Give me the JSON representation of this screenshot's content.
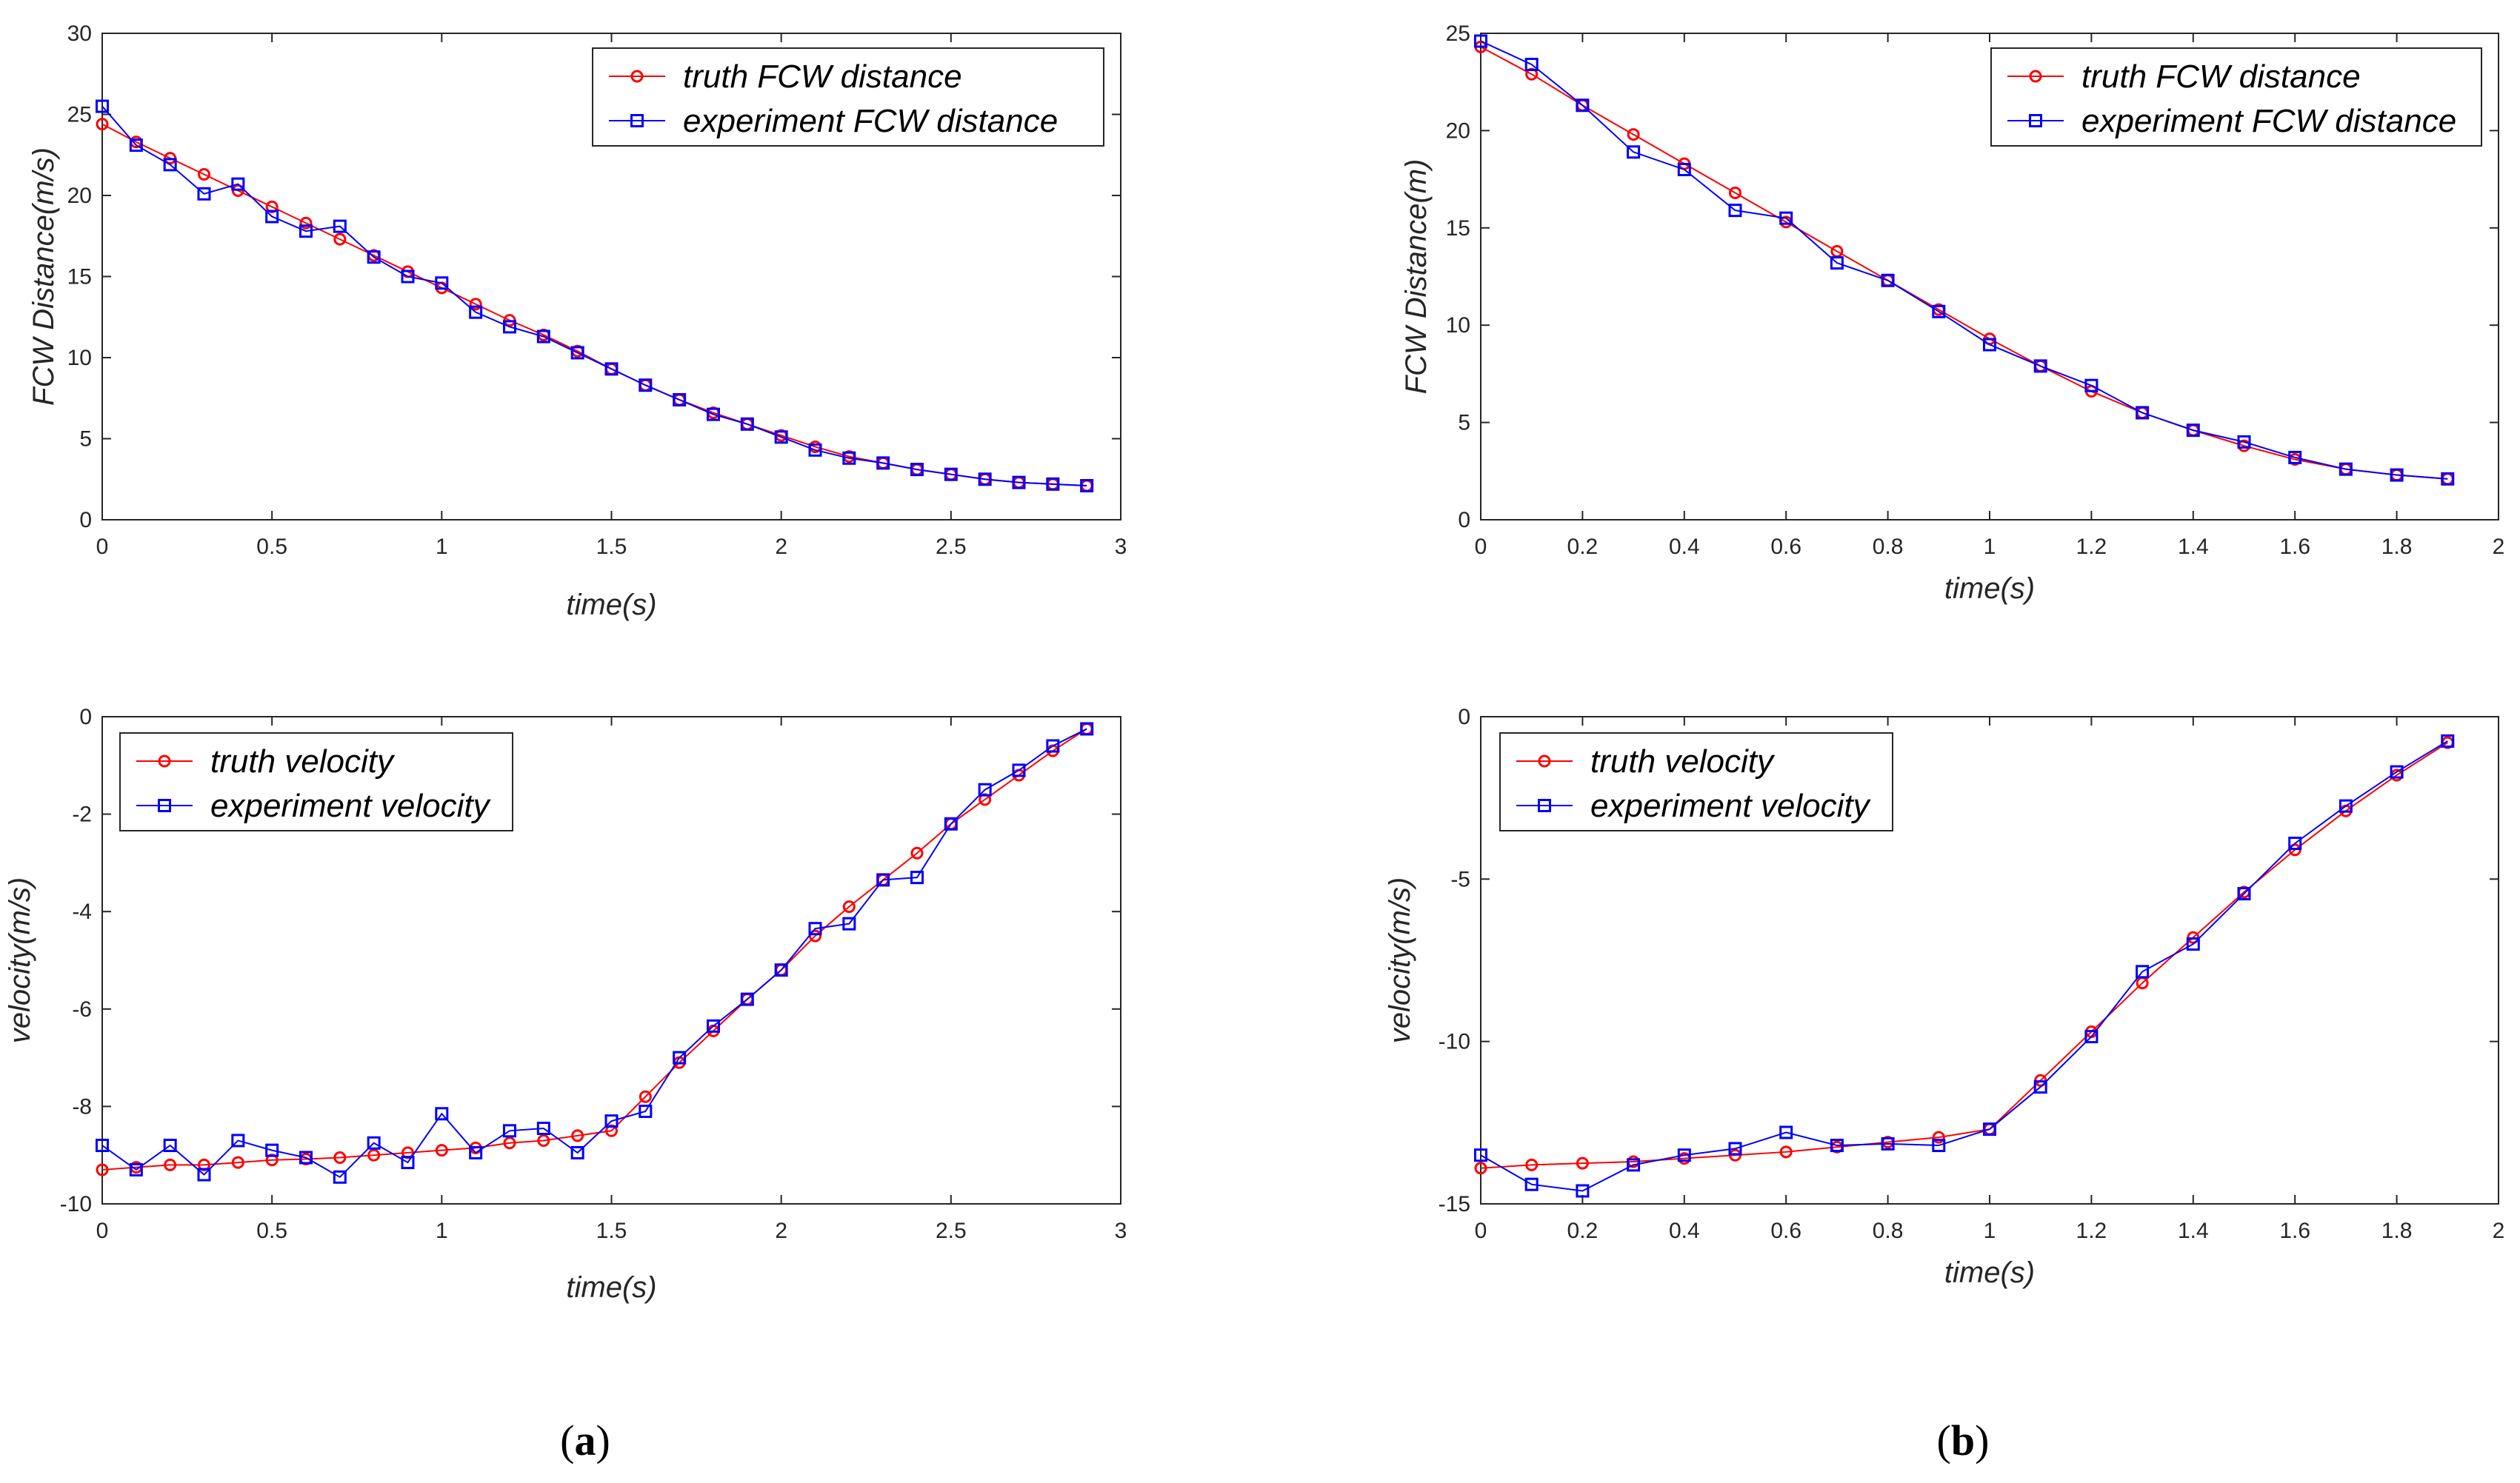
{
  "colors": {
    "truth": "#ff0000",
    "experiment": "#0000ff",
    "axis": "#262626"
  },
  "captions": {
    "a": "(a)",
    "b": "(b)",
    "a_letter": "a",
    "b_letter": "b",
    "open": "(",
    "close": ")"
  },
  "chart_data": [
    {
      "id": "a-distance",
      "type": "line",
      "xlabel": "time(s)",
      "ylabel": "FCW Distance(m/s)",
      "xlim": [
        0,
        3
      ],
      "ylim": [
        0,
        30
      ],
      "xticks": [
        0,
        0.5,
        1,
        1.5,
        2,
        2.5,
        3
      ],
      "xtick_labels": [
        "0",
        "0.5",
        "1",
        "1.5",
        "2",
        "2.5",
        "3"
      ],
      "yticks": [
        0,
        5,
        10,
        15,
        20,
        25,
        30
      ],
      "ytick_labels": [
        "0",
        "5",
        "10",
        "15",
        "20",
        "25",
        "30"
      ],
      "legend_position": "top-right",
      "x": [
        0,
        0.1,
        0.2,
        0.3,
        0.4,
        0.5,
        0.6,
        0.7,
        0.8,
        0.9,
        1.0,
        1.1,
        1.2,
        1.3,
        1.4,
        1.5,
        1.6,
        1.7,
        1.8,
        1.9,
        2.0,
        2.1,
        2.2,
        2.3,
        2.4,
        2.5,
        2.6,
        2.7,
        2.8,
        2.9
      ],
      "series": [
        {
          "name": "truth FCW distance",
          "marker": "circle",
          "color": "#ff0000",
          "values": [
            24.4,
            23.3,
            22.3,
            21.3,
            20.3,
            19.3,
            18.3,
            17.3,
            16.3,
            15.3,
            14.3,
            13.3,
            12.3,
            11.4,
            10.4,
            9.3,
            8.3,
            7.4,
            6.6,
            5.9,
            5.2,
            4.5,
            3.9,
            3.5,
            3.1,
            2.8,
            2.5,
            2.3,
            2.2,
            2.1
          ]
        },
        {
          "name": "experiment FCW distance",
          "marker": "square",
          "color": "#0000ff",
          "values": [
            25.5,
            23.1,
            21.9,
            20.1,
            20.7,
            18.7,
            17.8,
            18.1,
            16.2,
            15.0,
            14.6,
            12.8,
            11.9,
            11.3,
            10.3,
            9.3,
            8.3,
            7.4,
            6.5,
            5.9,
            5.1,
            4.3,
            3.8,
            3.5,
            3.1,
            2.8,
            2.5,
            2.3,
            2.2,
            2.1
          ]
        }
      ]
    },
    {
      "id": "b-distance",
      "type": "line",
      "xlabel": "time(s)",
      "ylabel": "FCW Distance(m)",
      "xlim": [
        0,
        2
      ],
      "ylim": [
        0,
        25
      ],
      "xticks": [
        0,
        0.2,
        0.4,
        0.6,
        0.8,
        1,
        1.2,
        1.4,
        1.6,
        1.8,
        2
      ],
      "xtick_labels": [
        "0",
        "0.2",
        "0.4",
        "0.6",
        "0.8",
        "1",
        "1.2",
        "1.4",
        "1.6",
        "1.8",
        "2"
      ],
      "yticks": [
        0,
        5,
        10,
        15,
        20,
        25
      ],
      "ytick_labels": [
        "0",
        "5",
        "10",
        "15",
        "20",
        "25"
      ],
      "legend_position": "top-right",
      "x": [
        0,
        0.1,
        0.2,
        0.3,
        0.4,
        0.5,
        0.6,
        0.7,
        0.8,
        0.9,
        1.0,
        1.1,
        1.2,
        1.3,
        1.4,
        1.5,
        1.6,
        1.7,
        1.8,
        1.9
      ],
      "series": [
        {
          "name": "truth FCW distance",
          "marker": "circle",
          "color": "#ff0000",
          "values": [
            24.3,
            22.9,
            21.3,
            19.8,
            18.3,
            16.8,
            15.3,
            13.8,
            12.3,
            10.8,
            9.3,
            7.9,
            6.6,
            5.5,
            4.6,
            3.8,
            3.1,
            2.6,
            2.3,
            2.1
          ]
        },
        {
          "name": "experiment FCW distance",
          "marker": "square",
          "color": "#0000ff",
          "values": [
            24.6,
            23.4,
            21.3,
            18.9,
            18.0,
            15.9,
            15.5,
            13.2,
            12.3,
            10.7,
            9.0,
            7.9,
            6.9,
            5.5,
            4.6,
            4.0,
            3.2,
            2.6,
            2.3,
            2.1
          ]
        }
      ]
    },
    {
      "id": "a-velocity",
      "type": "line",
      "xlabel": "time(s)",
      "ylabel": "velocity(m/s)",
      "xlim": [
        0,
        3
      ],
      "ylim": [
        -10,
        0
      ],
      "xticks": [
        0,
        0.5,
        1,
        1.5,
        2,
        2.5,
        3
      ],
      "xtick_labels": [
        "0",
        "0.5",
        "1",
        "1.5",
        "2",
        "2.5",
        "3"
      ],
      "yticks": [
        -10,
        -8,
        -6,
        -4,
        -2,
        0
      ],
      "ytick_labels": [
        "-10",
        "-8",
        "-6",
        "-4",
        "-2",
        "0"
      ],
      "legend_position": "top-left",
      "x": [
        0,
        0.1,
        0.2,
        0.3,
        0.4,
        0.5,
        0.6,
        0.7,
        0.8,
        0.9,
        1.0,
        1.1,
        1.2,
        1.3,
        1.4,
        1.5,
        1.6,
        1.7,
        1.8,
        1.9,
        2.0,
        2.1,
        2.2,
        2.3,
        2.4,
        2.5,
        2.6,
        2.7,
        2.8,
        2.9
      ],
      "series": [
        {
          "name": "truth velocity",
          "marker": "circle",
          "color": "#ff0000",
          "values": [
            -9.3,
            -9.25,
            -9.2,
            -9.2,
            -9.15,
            -9.1,
            -9.08,
            -9.05,
            -9.0,
            -8.95,
            -8.9,
            -8.85,
            -8.75,
            -8.7,
            -8.6,
            -8.5,
            -7.8,
            -7.1,
            -6.45,
            -5.8,
            -5.2,
            -4.5,
            -3.9,
            -3.35,
            -2.8,
            -2.2,
            -1.7,
            -1.2,
            -0.7,
            -0.25
          ]
        },
        {
          "name": "experiment velocity",
          "marker": "square",
          "color": "#0000ff",
          "values": [
            -8.8,
            -9.3,
            -8.8,
            -9.4,
            -8.7,
            -8.9,
            -9.05,
            -9.45,
            -8.75,
            -9.15,
            -8.15,
            -8.95,
            -8.5,
            -8.45,
            -8.95,
            -8.3,
            -8.1,
            -7.0,
            -6.35,
            -5.8,
            -5.2,
            -4.35,
            -4.25,
            -3.35,
            -3.3,
            -2.2,
            -1.5,
            -1.1,
            -0.6,
            -0.25
          ]
        }
      ]
    },
    {
      "id": "b-velocity",
      "type": "line",
      "xlabel": "time(s)",
      "ylabel": "velocity(m/s)",
      "xlim": [
        0,
        2
      ],
      "ylim": [
        -15,
        0
      ],
      "xticks": [
        0,
        0.2,
        0.4,
        0.6,
        0.8,
        1,
        1.2,
        1.4,
        1.6,
        1.8,
        2
      ],
      "xtick_labels": [
        "0",
        "0.2",
        "0.4",
        "0.6",
        "0.8",
        "1",
        "1.2",
        "1.4",
        "1.6",
        "1.8",
        "2"
      ],
      "yticks": [
        -15,
        -10,
        -5,
        0
      ],
      "ytick_labels": [
        "-15",
        "-10",
        "-5",
        "0"
      ],
      "legend_position": "top-left",
      "x": [
        0,
        0.1,
        0.2,
        0.3,
        0.4,
        0.5,
        0.6,
        0.7,
        0.8,
        0.9,
        1.0,
        1.1,
        1.2,
        1.3,
        1.4,
        1.5,
        1.6,
        1.7,
        1.8,
        1.9
      ],
      "series": [
        {
          "name": "truth velocity",
          "marker": "circle",
          "color": "#ff0000",
          "values": [
            -13.9,
            -13.8,
            -13.75,
            -13.7,
            -13.6,
            -13.5,
            -13.4,
            -13.25,
            -13.1,
            -12.95,
            -12.7,
            -11.2,
            -9.7,
            -8.2,
            -6.8,
            -5.4,
            -4.1,
            -2.9,
            -1.8,
            -0.8
          ]
        },
        {
          "name": "experiment velocity",
          "marker": "square",
          "color": "#0000ff",
          "values": [
            -13.5,
            -14.4,
            -14.6,
            -13.8,
            -13.5,
            -13.3,
            -12.8,
            -13.2,
            -13.15,
            -13.2,
            -12.7,
            -11.4,
            -9.85,
            -7.85,
            -7.0,
            -5.45,
            -3.9,
            -2.75,
            -1.7,
            -0.75
          ]
        }
      ]
    }
  ]
}
